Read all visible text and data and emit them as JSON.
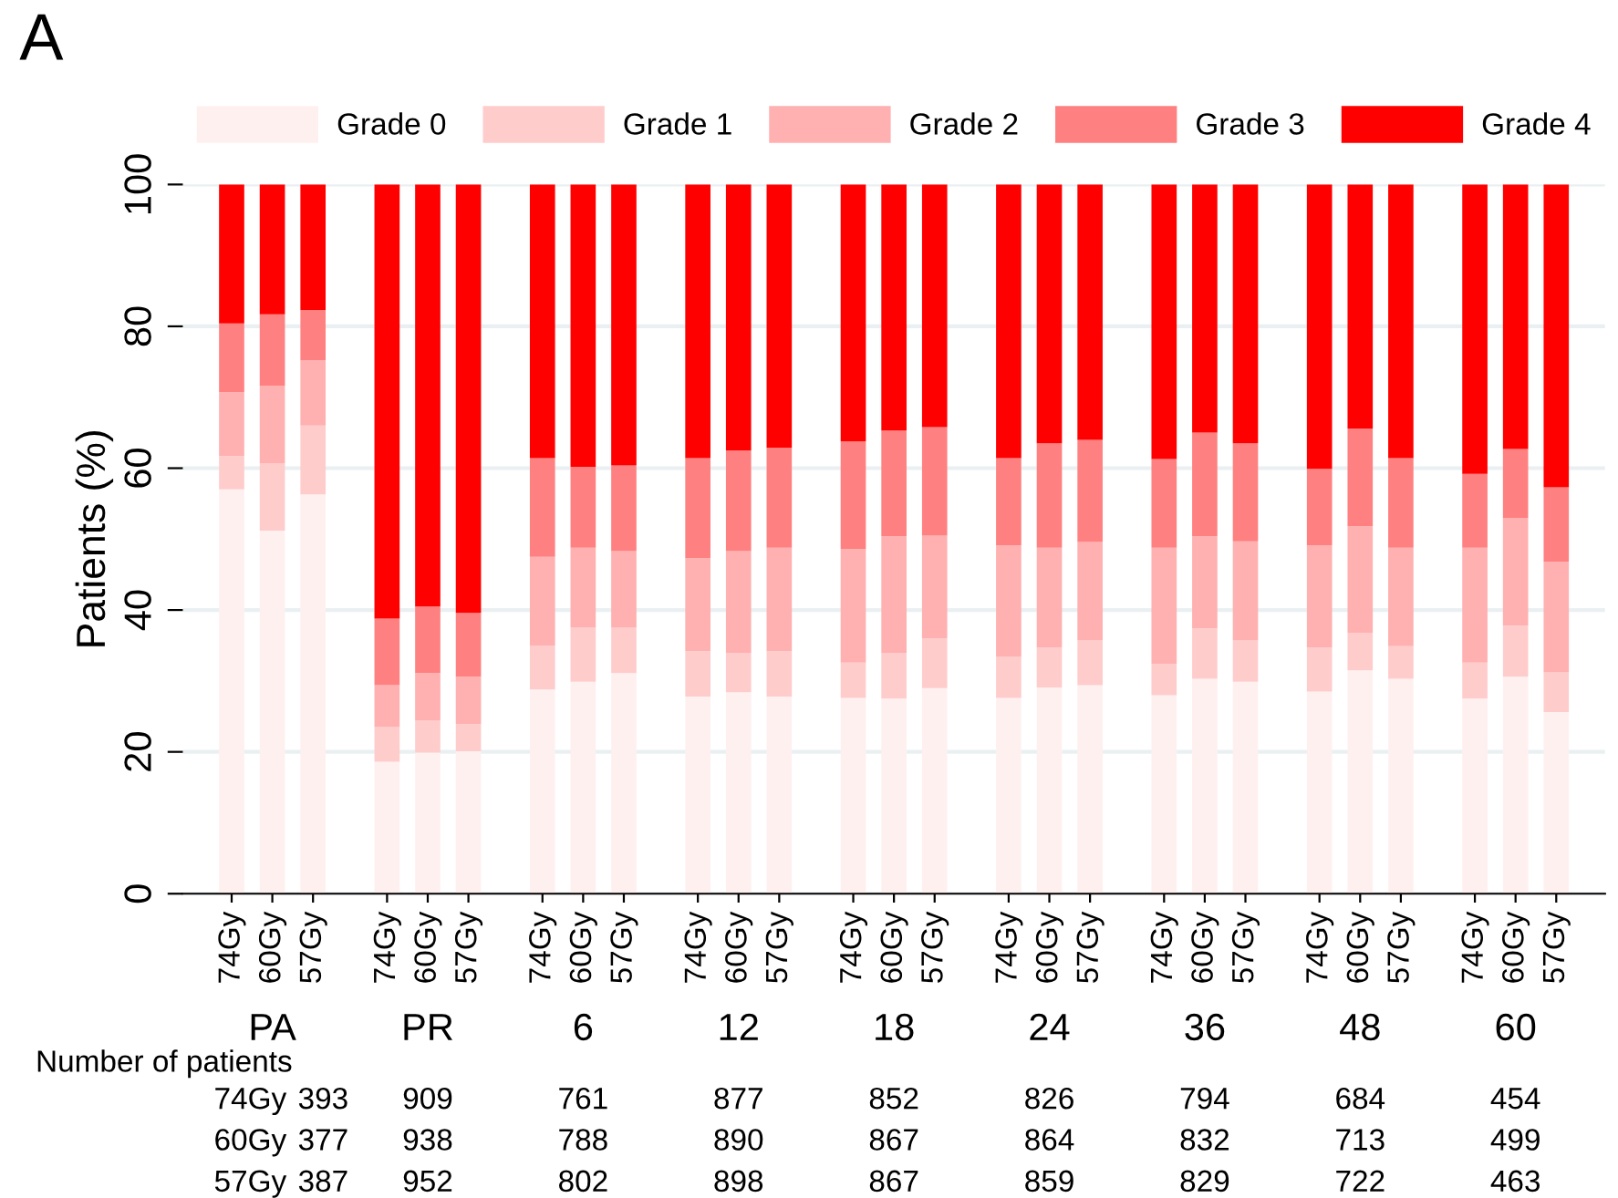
{
  "chart_data": {
    "type": "bar",
    "title": "A",
    "ylabel": "Patients (%)",
    "stacked": true,
    "categories": [
      "74Gy",
      "60Gy",
      "57Gy",
      "74Gy",
      "60Gy",
      "57Gy",
      "74Gy",
      "60Gy",
      "57Gy",
      "74Gy",
      "60Gy",
      "57Gy",
      "74Gy",
      "60Gy",
      "57Gy",
      "74Gy",
      "60Gy",
      "57Gy",
      "74Gy",
      "60Gy",
      "57Gy",
      "74Gy",
      "60Gy",
      "57Gy",
      "74Gy",
      "60Gy",
      "57Gy"
    ],
    "series": [
      {
        "name": "Grade 0",
        "color": "#fff0f0",
        "values": [
          57.0,
          51.2,
          56.3,
          18.6,
          19.9,
          20.1,
          28.8,
          29.9,
          31.1,
          27.8,
          28.4,
          27.8,
          27.6,
          27.5,
          29.0,
          27.6,
          29.1,
          29.4,
          28.0,
          30.3,
          29.9,
          28.5,
          31.5,
          30.3,
          27.5,
          30.6,
          25.6
        ]
      },
      {
        "name": "Grade 1",
        "color": "#ffcccc",
        "values": [
          4.7,
          9.5,
          9.7,
          4.9,
          4.5,
          3.8,
          6.2,
          7.6,
          6.4,
          6.4,
          5.5,
          6.4,
          5.0,
          6.4,
          7.0,
          5.8,
          5.6,
          6.3,
          4.4,
          7.1,
          5.8,
          6.2,
          5.3,
          4.6,
          5.1,
          7.2,
          5.6
        ]
      },
      {
        "name": "Grade 2",
        "color": "#ffb0b0",
        "values": [
          9.0,
          10.9,
          9.2,
          5.9,
          6.7,
          6.7,
          12.5,
          11.3,
          10.8,
          13.1,
          14.4,
          14.6,
          16.0,
          16.5,
          14.5,
          15.7,
          14.1,
          13.9,
          16.4,
          13.0,
          14.0,
          14.4,
          15.0,
          13.9,
          16.2,
          15.2,
          15.6
        ]
      },
      {
        "name": "Grade 3",
        "color": "#ff8080",
        "values": [
          9.7,
          10.1,
          7.1,
          9.4,
          9.4,
          9.0,
          13.9,
          11.4,
          12.1,
          14.1,
          14.2,
          14.1,
          15.2,
          14.9,
          15.3,
          12.3,
          14.7,
          14.4,
          12.5,
          14.6,
          13.8,
          10.8,
          13.8,
          12.6,
          10.4,
          9.7,
          10.5
        ]
      },
      {
        "name": "Grade 4",
        "color": "#ff0000",
        "values": [
          19.6,
          18.3,
          17.7,
          61.2,
          59.5,
          60.4,
          38.6,
          39.8,
          39.6,
          38.6,
          37.5,
          37.1,
          36.2,
          34.7,
          34.2,
          38.6,
          36.5,
          36.0,
          38.7,
          35.0,
          36.5,
          40.1,
          34.4,
          38.6,
          40.8,
          37.3,
          42.7
        ]
      }
    ],
    "ylim": [
      0,
      100
    ],
    "yticks": [
      0,
      20,
      40,
      60,
      80,
      100
    ],
    "grid": "y",
    "legend": "top",
    "annotations": [
      "PA",
      "PR",
      "6",
      "12",
      "18",
      "24",
      "36",
      "48",
      "60",
      "Number of patients",
      "74Gy",
      "393",
      "909",
      "761",
      "877",
      "852",
      "826",
      "794",
      "684",
      "454",
      "60Gy",
      "377",
      "938",
      "788",
      "890",
      "867",
      "864",
      "832",
      "713",
      "499",
      "57Gy",
      "387",
      "952",
      "802",
      "898",
      "867",
      "859",
      "829",
      "722",
      "463"
    ]
  }
}
